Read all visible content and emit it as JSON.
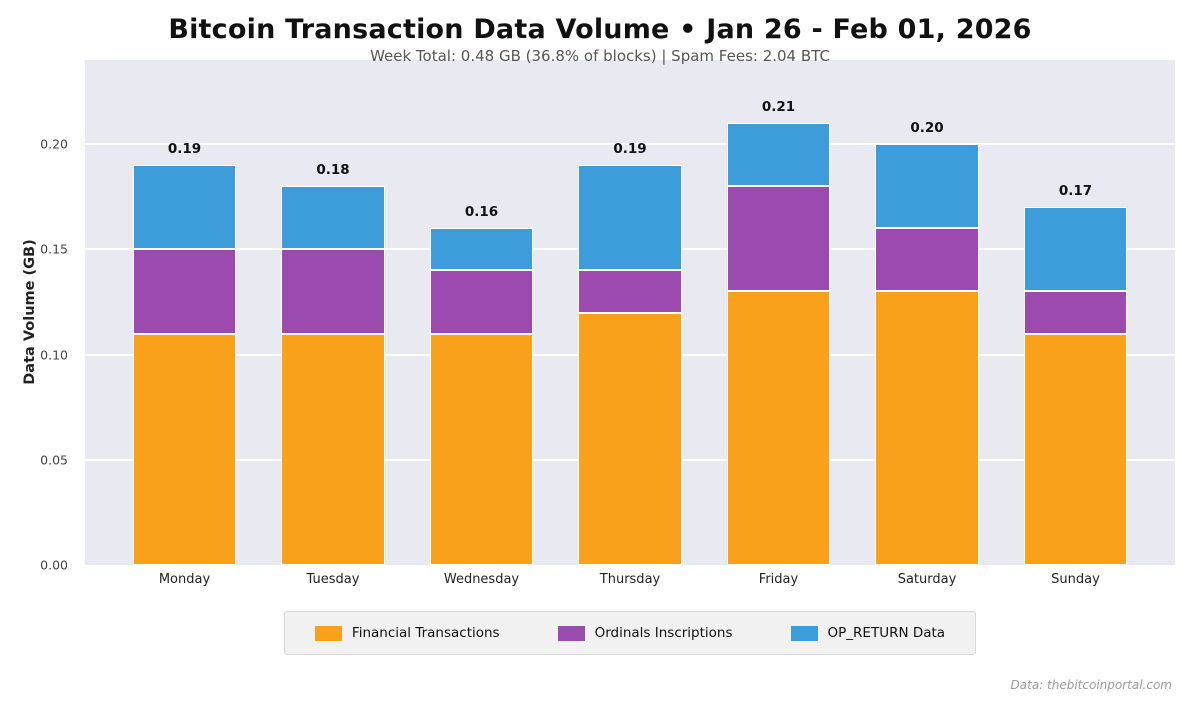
{
  "header": {
    "title": "Bitcoin Transaction Data Volume  •  Jan 26 - Feb 01, 2026",
    "subtitle": "Week Total: 0.48 GB (36.8% of blocks)  |  Spam Fees: 2.04 BTC"
  },
  "chart_data": {
    "type": "bar",
    "stacked": true,
    "title": "Bitcoin Transaction Data Volume  •  Jan 26 - Feb 01, 2026",
    "subtitle": "Week Total: 0.48 GB (36.8% of blocks)  |  Spam Fees: 2.04 BTC",
    "categories": [
      "Monday",
      "Tuesday",
      "Wednesday",
      "Thursday",
      "Friday",
      "Saturday",
      "Sunday"
    ],
    "series": [
      {
        "name": "Financial Transactions",
        "color": "#F9A11B",
        "values": [
          0.11,
          0.11,
          0.11,
          0.12,
          0.13,
          0.13,
          0.11
        ]
      },
      {
        "name": "Ordinals Inscriptions",
        "color": "#9C4AB0",
        "values": [
          0.04,
          0.04,
          0.03,
          0.02,
          0.05,
          0.03,
          0.02
        ]
      },
      {
        "name": "OP_RETURN Data",
        "color": "#3D9DDB",
        "values": [
          0.04,
          0.03,
          0.02,
          0.05,
          0.03,
          0.04,
          0.04
        ]
      }
    ],
    "totals": [
      0.19,
      0.18,
      0.16,
      0.19,
      0.21,
      0.2,
      0.17
    ],
    "total_labels": [
      "0.19",
      "0.18",
      "0.16",
      "0.19",
      "0.21",
      "0.20",
      "0.17"
    ],
    "xlabel": "",
    "ylabel": "Data Volume (GB)",
    "ylim": [
      0,
      0.24
    ],
    "yticks": [
      0.0,
      0.05,
      0.1,
      0.15,
      0.2
    ],
    "ytick_labels": [
      "0.00",
      "0.05",
      "0.10",
      "0.15",
      "0.20"
    ],
    "grid": true,
    "legend_position": "bottom"
  },
  "footer": {
    "source": "Data: thebitcoinportal.com"
  }
}
